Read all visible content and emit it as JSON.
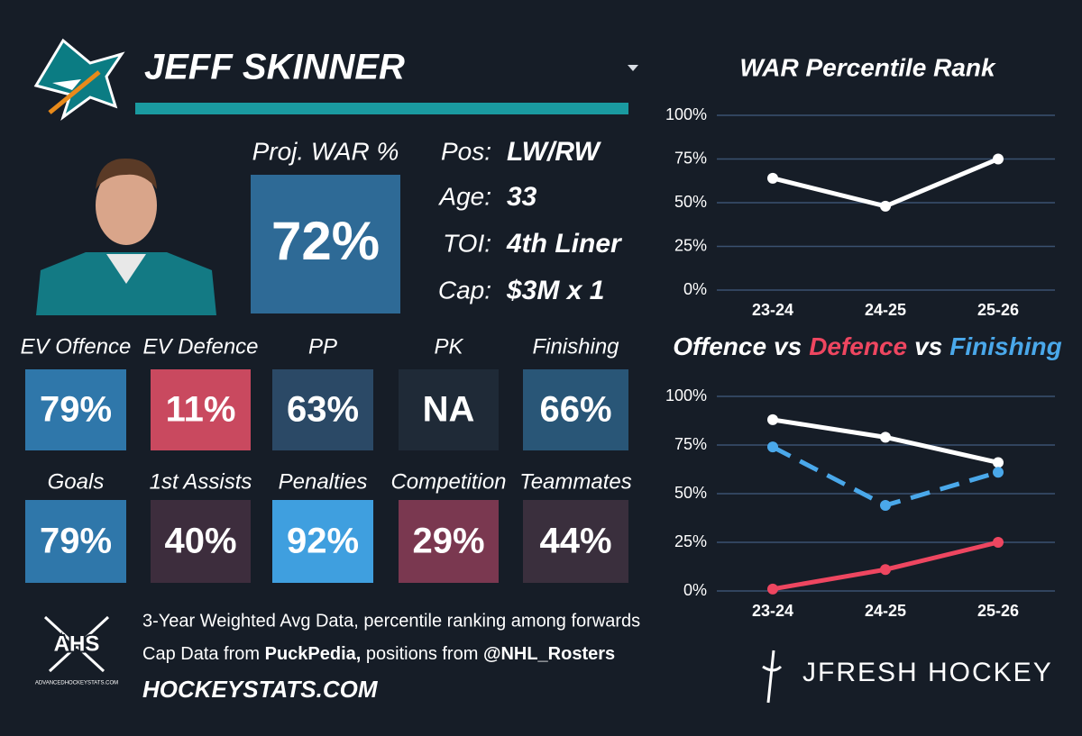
{
  "player": {
    "name": "JEFF SKINNER"
  },
  "proj_war": {
    "label": "Proj. WAR %",
    "value": "72%"
  },
  "info": [
    {
      "label": "Pos:",
      "value": "LW/RW"
    },
    {
      "label": "Age:",
      "value": "33"
    },
    {
      "label": "TOI:",
      "value": "4th Liner"
    },
    {
      "label": "Cap:",
      "value": "$3M x 1"
    }
  ],
  "tiles": [
    {
      "label": "EV Offence",
      "value": "79%",
      "color": "#2f77aa"
    },
    {
      "label": "EV Defence",
      "value": "11%",
      "color": "#c9495f"
    },
    {
      "label": "PP",
      "value": "63%",
      "color": "#2b4966"
    },
    {
      "label": "PK",
      "value": "NA",
      "color": "#1f2a37"
    },
    {
      "label": "Finishing",
      "value": "66%",
      "color": "#295677"
    },
    {
      "label": "Goals",
      "value": "79%",
      "color": "#2f77aa"
    },
    {
      "label": "1st Assists",
      "value": "40%",
      "color": "#3d2d3d"
    },
    {
      "label": "Penalties",
      "value": "92%",
      "color": "#3f9fdf"
    },
    {
      "label": "Competition",
      "value": "29%",
      "color": "#7a3850"
    },
    {
      "label": "Teammates",
      "value": "44%",
      "color": "#3a2f3d"
    }
  ],
  "footer": {
    "line1": "3-Year Weighted Avg Data, percentile ranking among forwards",
    "line2": [
      {
        "text": "Cap Data from ",
        "bold": false
      },
      {
        "text": "PuckPedia,",
        "bold": true
      },
      {
        "text": " positions from ",
        "bold": false
      },
      {
        "text": "@NHL_Rosters",
        "bold": true
      }
    ],
    "site": "HOCKEYSTATS.COM",
    "ahs": "AHS",
    "ahs_sub": "ADVANCEDHOCKEYSTATS.COM",
    "brand": "JFRESH HOCKEY"
  },
  "chart_data": [
    {
      "type": "line",
      "title": "WAR Percentile Rank",
      "categories": [
        "23-24",
        "24-25",
        "25-26"
      ],
      "series": [
        {
          "color": "#ffffff",
          "dash": false,
          "values": [
            64,
            48,
            75
          ]
        }
      ],
      "ylim": [
        0,
        100
      ],
      "yticks": [
        {
          "value": 0,
          "label": "0%"
        },
        {
          "value": 25,
          "label": "25%"
        },
        {
          "value": 50,
          "label": "50%"
        },
        {
          "value": 75,
          "label": "75%"
        },
        {
          "value": 100,
          "label": "100%"
        }
      ],
      "grid": true
    },
    {
      "type": "line",
      "title_separator": "vs",
      "categories": [
        "23-24",
        "24-25",
        "25-26"
      ],
      "series": [
        {
          "name": "Offence",
          "color": "#ffffff",
          "dash": false,
          "values": [
            88,
            79,
            66
          ]
        },
        {
          "name": "Defence",
          "color": "#ee4660",
          "dash": false,
          "values": [
            1,
            11,
            25
          ]
        },
        {
          "name": "Finishing",
          "color": "#4aa8ea",
          "dash": true,
          "values": [
            74,
            44,
            61
          ]
        }
      ],
      "ylim": [
        0,
        100
      ],
      "yticks": [
        {
          "value": 0,
          "label": "0%"
        },
        {
          "value": 25,
          "label": "25%"
        },
        {
          "value": 50,
          "label": "50%"
        },
        {
          "value": 75,
          "label": "75%"
        },
        {
          "value": 100,
          "label": "100%"
        }
      ],
      "grid": true
    }
  ]
}
